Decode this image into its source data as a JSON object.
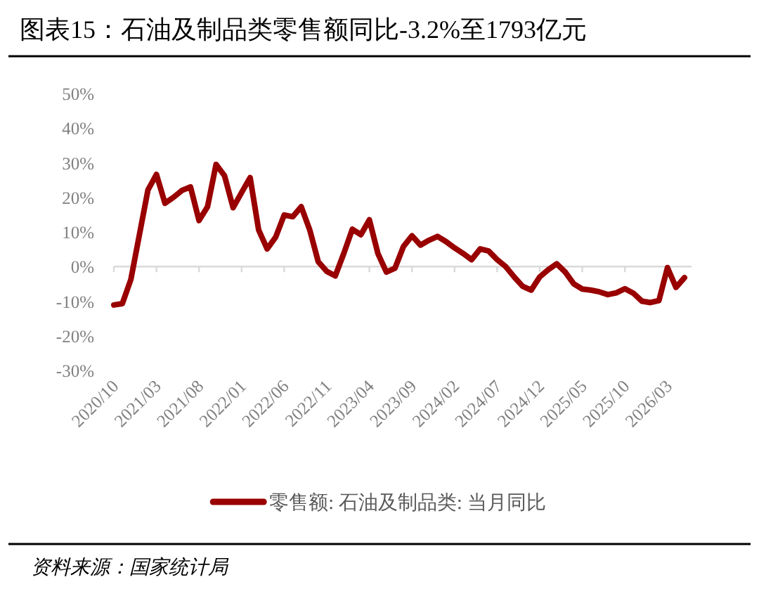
{
  "chart_data": {
    "type": "line",
    "title": "图表15：石油及制品类零售额同比-3.2%至1793亿元",
    "categories": [
      "2020/10",
      null,
      null,
      null,
      null,
      "2021/03",
      null,
      null,
      null,
      null,
      "2021/08",
      null,
      null,
      null,
      null,
      "2022/01",
      null,
      null,
      null,
      null,
      "2022/06",
      null,
      null,
      null,
      null,
      "2022/11",
      null,
      null,
      null,
      null,
      "2023/04",
      null,
      null,
      null,
      null,
      "2023/09",
      null,
      null,
      null,
      null,
      "2024/02",
      null,
      null,
      null,
      null,
      "2024/07",
      null,
      null,
      null,
      null,
      "2024/12",
      null,
      null,
      null,
      null,
      "2025/05",
      null,
      null,
      null,
      null,
      "2025/10",
      null,
      null,
      null,
      null,
      "2026/03",
      null,
      null
    ],
    "series": [
      {
        "name": "零售额: 石油及制品类: 当月同比",
        "color": "#990000",
        "values": [
          -11.1,
          -10.7,
          -3.7,
          9.2,
          22.1,
          26.6,
          18.3,
          20,
          22,
          23,
          13.3,
          17.3,
          29.5,
          26.2,
          17,
          21.4,
          25.7,
          10.6,
          5.1,
          8.5,
          14.9,
          14.4,
          17.3,
          10.6,
          1.4,
          -1.4,
          -2.7,
          3.8,
          10.8,
          9.2,
          13.5,
          3.8,
          -1.6,
          -0.5,
          5.8,
          8.9,
          6.2,
          7.6,
          8.7,
          7.2,
          5.4,
          3.8,
          2,
          5.1,
          4.5,
          2,
          0,
          -3,
          -5.7,
          -6.8,
          -3,
          -0.9,
          0.8,
          -1.6,
          -5,
          -6.5,
          -6.8,
          -7.3,
          -8.1,
          -7.6,
          -6.4,
          -7.7,
          -10,
          -10.4,
          -9.8,
          -0.3,
          -6,
          -3.2
        ]
      }
    ],
    "ylim": [
      -30,
      50
    ],
    "yticks": [
      {
        "value": -30,
        "label": "-30%"
      },
      {
        "value": -20,
        "label": "-20%"
      },
      {
        "value": -10,
        "label": "-10%"
      },
      {
        "value": 0,
        "label": "0%"
      },
      {
        "value": 10,
        "label": "10%"
      },
      {
        "value": 20,
        "label": "20%"
      },
      {
        "value": 30,
        "label": "30%"
      },
      {
        "value": 40,
        "label": "40%"
      },
      {
        "value": 50,
        "label": "50%"
      }
    ],
    "legend": "bottom",
    "marker": "none",
    "line_style": "solid",
    "annotations": [
      "资料来源：国家统计局"
    ]
  }
}
